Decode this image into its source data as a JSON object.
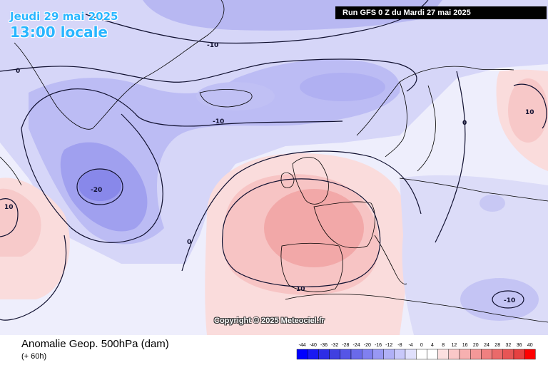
{
  "header": {
    "date": "Jeudi 29 mai 2025",
    "local_time": "13:00 locale",
    "run": "Run GFS 0 Z du Mardi 27 mai 2025"
  },
  "map": {
    "copyright": "Copyright © 2025 Meteociel.fr",
    "contour_labels": [
      {
        "id": "greenland-zero",
        "text": "0"
      },
      {
        "id": "north-minus10",
        "text": "-10"
      },
      {
        "id": "atlantic-minus10",
        "text": "-10"
      },
      {
        "id": "low-center",
        "text": "-20"
      },
      {
        "id": "west-plus10",
        "text": "10"
      },
      {
        "id": "atlantic-zero",
        "text": "0"
      },
      {
        "id": "iberia-plus10",
        "text": "10"
      },
      {
        "id": "scandinavia-zero",
        "text": "0"
      },
      {
        "id": "russia-plus10",
        "text": "10"
      },
      {
        "id": "east-med-minus10",
        "text": "-10"
      }
    ],
    "anomaly_features": [
      {
        "id": "atlantic-low",
        "sign": "negative",
        "peak_label": "-20"
      },
      {
        "id": "western-europe-ridge",
        "sign": "positive",
        "peak_label": "10"
      },
      {
        "id": "east-med-low",
        "sign": "negative",
        "peak_label": "-10"
      }
    ]
  },
  "footer": {
    "parameter": "Anomalie Geop. 500hPa (dam)",
    "lead_time": "(+ 60h)"
  },
  "legend": {
    "ticks": [
      "-44",
      "-40",
      "-36",
      "-32",
      "-28",
      "-24",
      "-20",
      "-16",
      "-12",
      "-8",
      "-4",
      "0",
      "4",
      "8",
      "12",
      "16",
      "20",
      "24",
      "28",
      "32",
      "36",
      "40"
    ],
    "colors": [
      "#0000ff",
      "#1a1af2",
      "#2d2de6",
      "#4040e0",
      "#5555e6",
      "#6a6aea",
      "#8080f0",
      "#9898f4",
      "#b0b0f7",
      "#c8c8fa",
      "#e0e0fc",
      "#ffffff",
      "#ffffff",
      "#fce0e0",
      "#fac8c8",
      "#f7b0b0",
      "#f49898",
      "#f08080",
      "#ea6a6a",
      "#e65555",
      "#e64040",
      "#ff0000"
    ]
  }
}
